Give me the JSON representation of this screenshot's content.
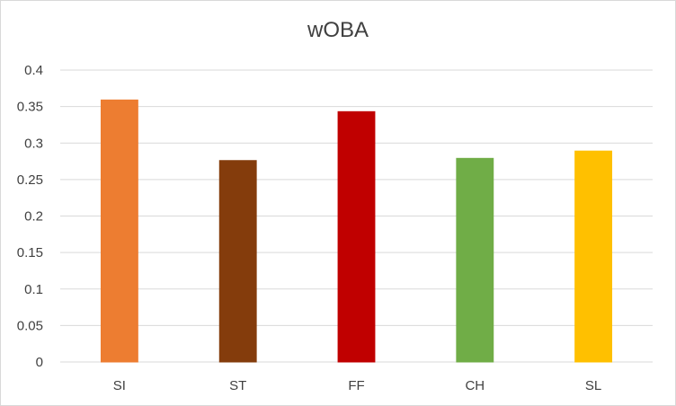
{
  "chart_data": {
    "type": "bar",
    "title": "wOBA",
    "xlabel": "",
    "ylabel": "",
    "categories": [
      "SI",
      "ST",
      "FF",
      "CH",
      "SL"
    ],
    "values": [
      0.359,
      0.276,
      0.343,
      0.279,
      0.289
    ],
    "colors": [
      "#ED7D31",
      "#843C0C",
      "#C00000",
      "#70AD47",
      "#FFC000"
    ],
    "ylim": [
      0,
      0.4
    ],
    "yticks": [
      "0",
      "0.05",
      "0.1",
      "0.15",
      "0.2",
      "0.25",
      "0.3",
      "0.35",
      "0.4"
    ],
    "grid": true,
    "legend": "none"
  }
}
